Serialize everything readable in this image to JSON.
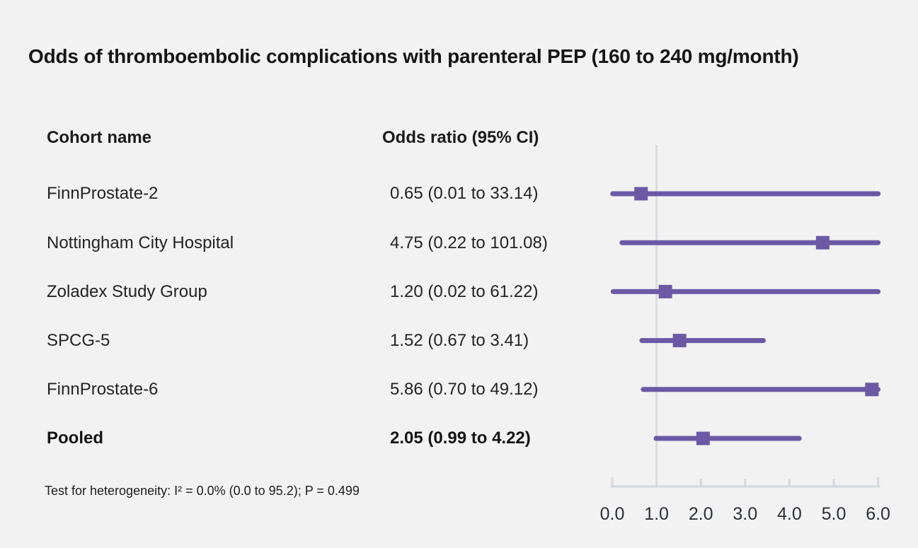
{
  "title": "Odds of thromboembolic complications with parenteral PEP (160 to 240 mg/month)",
  "table": {
    "col1_header": "Cohort name",
    "col2_header": "Odds ratio (95% CI)",
    "rows": [
      {
        "name": "FinnProstate-2",
        "or_text": "0.65 (0.01 to 33.14)"
      },
      {
        "name": "Nottingham City Hospital",
        "or_text": "4.75 (0.22 to 101.08)"
      },
      {
        "name": "Zoladex Study Group",
        "or_text": "1.20 (0.02 to 61.22)"
      },
      {
        "name": "SPCG-5",
        "or_text": "1.52 (0.67 to 3.41)"
      },
      {
        "name": "FinnProstate-6",
        "or_text": "5.86 (0.70 to 49.12)"
      },
      {
        "name": "Pooled",
        "or_text": "2.05 (0.99 to 4.22)"
      }
    ]
  },
  "footnote": "Test for heterogeneity: I² = 0.0% (0.0 to 95.2); P = 0.499",
  "chart_data": {
    "type": "scatter",
    "subtype": "forest-plot",
    "title": "Odds of thromboembolic complications with parenteral PEP (160 to 240 mg/month)",
    "xlabel": "",
    "ylabel": "",
    "x_axis": {
      "range": [
        0,
        6
      ],
      "ticks": [
        0,
        1,
        2,
        3,
        4,
        5,
        6
      ],
      "tick_labels": [
        "0.0",
        "1.0",
        "2.0",
        "3.0",
        "4.0",
        "5.0",
        "6.0"
      ],
      "reference_line_x": 1.0,
      "ci_clip_max": 6.0
    },
    "marker": "square",
    "grid": false,
    "legend": "none",
    "points": [
      {
        "label": "FinnProstate-2",
        "estimate": 0.65,
        "ci_lower": 0.01,
        "ci_upper": 33.14,
        "pooled": false
      },
      {
        "label": "Nottingham City Hospital",
        "estimate": 4.75,
        "ci_lower": 0.22,
        "ci_upper": 101.08,
        "pooled": false
      },
      {
        "label": "Zoladex Study Group",
        "estimate": 1.2,
        "ci_lower": 0.02,
        "ci_upper": 61.22,
        "pooled": false
      },
      {
        "label": "SPCG-5",
        "estimate": 1.52,
        "ci_lower": 0.67,
        "ci_upper": 3.41,
        "pooled": false
      },
      {
        "label": "FinnProstate-6",
        "estimate": 5.86,
        "ci_lower": 0.7,
        "ci_upper": 49.12,
        "pooled": false
      },
      {
        "label": "Pooled",
        "estimate": 2.05,
        "ci_lower": 0.99,
        "ci_upper": 4.22,
        "pooled": true
      }
    ],
    "heterogeneity_note": "Test for heterogeneity: I² = 0.0% (0.0 to 95.2); P = 0.499"
  },
  "colors": {
    "background": "#f2f2f2",
    "accent_purple": "#6b59a5",
    "axis_gray": "#d2d8e0",
    "reference_line": "#d9dce2",
    "tick_label_text": "#2c2f35",
    "title_text": "#161616",
    "body_text": "#232323"
  }
}
